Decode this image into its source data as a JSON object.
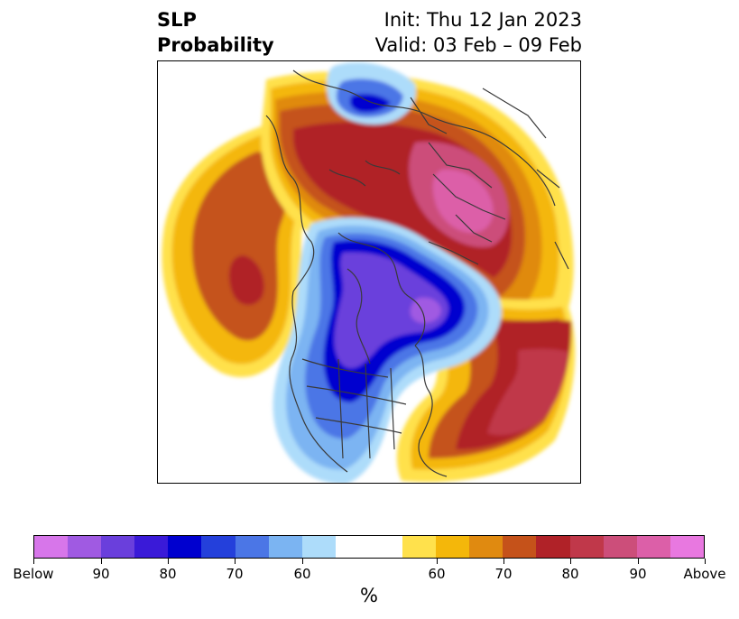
{
  "header": {
    "title_line1": "SLP",
    "title_line2": "Probability",
    "init": "Init: Thu 12 Jan 2023",
    "valid": "Valid: 03 Feb – 09 Feb"
  },
  "colorbar": {
    "colors": [
      "#d776ea",
      "#a05ae2",
      "#6a3fdc",
      "#3a1ad8",
      "#0000cf",
      "#2440db",
      "#4b76e6",
      "#7bb4f2",
      "#addcfa",
      "#ffffff",
      "#ffffff",
      "#ffe14c",
      "#f4b70a",
      "#e08a10",
      "#c5521a",
      "#b02228",
      "#c0384a",
      "#cc4e7a",
      "#dc5fa8",
      "#e878e0"
    ],
    "tick_labels": [
      "Below",
      "90",
      "80",
      "70",
      "60",
      "60",
      "70",
      "80",
      "90",
      "Above"
    ],
    "unit_label": "%"
  }
}
